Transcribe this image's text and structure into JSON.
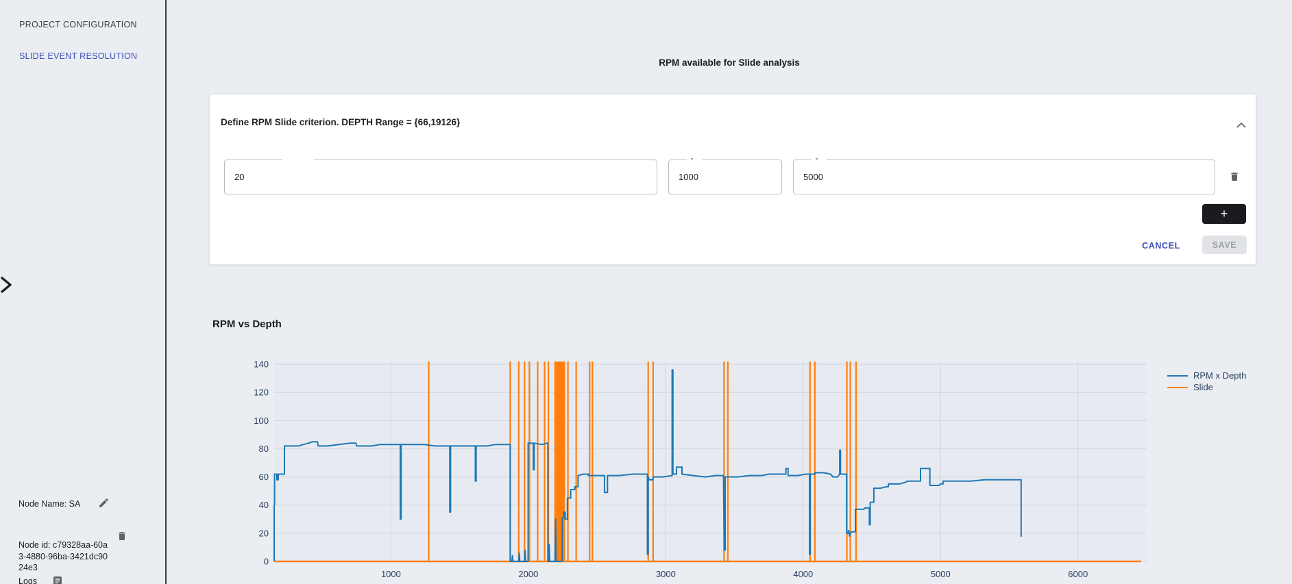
{
  "sidebar": {
    "items": [
      {
        "label": "PROJECT CONFIGURATION",
        "active": false
      },
      {
        "label": "SLIDE EVENT RESOLUTION",
        "active": true
      }
    ],
    "node_name_label": "Node Name: SA",
    "node_id_line": "Node id: c79328aa-60a3-4880-96ba-3421dc9024e3",
    "logs_label": "Logs"
  },
  "header": {
    "title": "RPM available for Slide analysis"
  },
  "criterion_card": {
    "title": "Define RPM Slide criterion. DEPTH Range = {66,19126}",
    "inputs": [
      {
        "value": "20"
      },
      {
        "value": "1000"
      },
      {
        "value": "5000"
      }
    ],
    "add_button_label": "+",
    "cancel_label": "CANCEL",
    "save_label": "SAVE"
  },
  "chart": {
    "title": "RPM vs Depth"
  },
  "chart_data": {
    "type": "line",
    "title": "RPM vs Depth",
    "xlabel": "",
    "ylabel": "",
    "x_range": [
      150,
      6500
    ],
    "y_range": [
      0,
      142
    ],
    "x_ticks": [
      1000,
      2000,
      3000,
      4000,
      5000,
      6000
    ],
    "y_ticks": [
      0,
      20,
      40,
      60,
      80,
      100,
      120,
      140
    ],
    "grid": true,
    "legend_position": "right",
    "colors": {
      "rpm": "#1f77b4",
      "slide": "#ff7f0e",
      "plot_bg": "#e7ebf1",
      "grid": "#d4d9df",
      "tick_text": "#2a3f5f"
    },
    "series": [
      {
        "name": "RPM x Depth",
        "color": "#1f77b4",
        "points": [
          [
            150,
            0
          ],
          [
            150,
            40
          ],
          [
            153,
            40
          ],
          [
            153,
            62
          ],
          [
            170,
            62
          ],
          [
            170,
            58
          ],
          [
            180,
            58
          ],
          [
            180,
            62
          ],
          [
            225,
            62
          ],
          [
            225,
            82
          ],
          [
            280,
            82
          ],
          [
            330,
            82
          ],
          [
            360,
            83
          ],
          [
            400,
            84
          ],
          [
            430,
            85
          ],
          [
            465,
            85
          ],
          [
            470,
            82
          ],
          [
            540,
            82
          ],
          [
            620,
            83
          ],
          [
            700,
            84
          ],
          [
            745,
            84
          ],
          [
            750,
            82
          ],
          [
            860,
            82
          ],
          [
            920,
            83
          ],
          [
            1000,
            83
          ],
          [
            1068,
            83
          ],
          [
            1068,
            30
          ],
          [
            1074,
            30
          ],
          [
            1074,
            83
          ],
          [
            1150,
            83
          ],
          [
            1240,
            83
          ],
          [
            1320,
            82
          ],
          [
            1428,
            82
          ],
          [
            1428,
            35
          ],
          [
            1434,
            35
          ],
          [
            1434,
            82
          ],
          [
            1560,
            82
          ],
          [
            1614,
            82
          ],
          [
            1614,
            57
          ],
          [
            1620,
            57
          ],
          [
            1620,
            82
          ],
          [
            1700,
            82
          ],
          [
            1760,
            83
          ],
          [
            1868,
            83
          ],
          [
            1868,
            0
          ],
          [
            1880,
            0
          ],
          [
            1884,
            4
          ],
          [
            1888,
            0
          ],
          [
            1930,
            0
          ],
          [
            1934,
            6
          ],
          [
            1938,
            0
          ],
          [
            1972,
            0
          ],
          [
            1976,
            8
          ],
          [
            1980,
            0
          ],
          [
            1998,
            0
          ],
          [
            1998,
            84
          ],
          [
            2032,
            84
          ],
          [
            2036,
            84
          ],
          [
            2036,
            65
          ],
          [
            2042,
            65
          ],
          [
            2042,
            84
          ],
          [
            2100,
            83
          ],
          [
            2134,
            84
          ],
          [
            2142,
            84
          ],
          [
            2142,
            0
          ],
          [
            2148,
            0
          ],
          [
            2152,
            12
          ],
          [
            2156,
            0
          ],
          [
            2194,
            0
          ],
          [
            2198,
            30
          ],
          [
            2202,
            0
          ],
          [
            2246,
            0
          ],
          [
            2246,
            31
          ],
          [
            2258,
            31
          ],
          [
            2258,
            35
          ],
          [
            2268,
            35
          ],
          [
            2268,
            30
          ],
          [
            2284,
            30
          ],
          [
            2284,
            45
          ],
          [
            2308,
            45
          ],
          [
            2308,
            51
          ],
          [
            2338,
            51
          ],
          [
            2338,
            53
          ],
          [
            2362,
            53
          ],
          [
            2362,
            61
          ],
          [
            2400,
            62
          ],
          [
            2436,
            62
          ],
          [
            2436,
            61
          ],
          [
            2554,
            61
          ],
          [
            2554,
            49
          ],
          [
            2576,
            49
          ],
          [
            2576,
            61
          ],
          [
            2660,
            61
          ],
          [
            2760,
            62
          ],
          [
            2866,
            62
          ],
          [
            2866,
            5
          ],
          [
            2872,
            5
          ],
          [
            2872,
            60
          ],
          [
            2880,
            58
          ],
          [
            2904,
            58
          ],
          [
            2912,
            60
          ],
          [
            2980,
            60
          ],
          [
            3046,
            61
          ],
          [
            3046,
            136
          ],
          [
            3052,
            136
          ],
          [
            3052,
            62
          ],
          [
            3078,
            62
          ],
          [
            3078,
            67
          ],
          [
            3118,
            67
          ],
          [
            3118,
            62
          ],
          [
            3200,
            61
          ],
          [
            3290,
            60
          ],
          [
            3360,
            61
          ],
          [
            3420,
            61
          ],
          [
            3426,
            8
          ],
          [
            3432,
            8
          ],
          [
            3432,
            60
          ],
          [
            3520,
            60
          ],
          [
            3610,
            61
          ],
          [
            3700,
            61
          ],
          [
            3750,
            62
          ],
          [
            3820,
            62
          ],
          [
            3874,
            62
          ],
          [
            3874,
            66
          ],
          [
            3890,
            66
          ],
          [
            3890,
            61
          ],
          [
            3960,
            61
          ],
          [
            4020,
            62
          ],
          [
            4046,
            62
          ],
          [
            4046,
            5
          ],
          [
            4052,
            5
          ],
          [
            4052,
            62
          ],
          [
            4085,
            62
          ],
          [
            4085,
            63
          ],
          [
            4150,
            63
          ],
          [
            4200,
            62
          ],
          [
            4216,
            60
          ],
          [
            4250,
            60
          ],
          [
            4266,
            62
          ],
          [
            4266,
            79
          ],
          [
            4272,
            79
          ],
          [
            4272,
            62
          ],
          [
            4316,
            62
          ],
          [
            4316,
            20
          ],
          [
            4326,
            20
          ],
          [
            4330,
            22
          ],
          [
            4338,
            18
          ],
          [
            4348,
            21
          ],
          [
            4380,
            21
          ],
          [
            4380,
            37
          ],
          [
            4440,
            37
          ],
          [
            4452,
            38
          ],
          [
            4482,
            38
          ],
          [
            4482,
            26
          ],
          [
            4488,
            26
          ],
          [
            4488,
            42
          ],
          [
            4514,
            42
          ],
          [
            4514,
            52
          ],
          [
            4560,
            52
          ],
          [
            4604,
            53
          ],
          [
            4620,
            53
          ],
          [
            4620,
            55
          ],
          [
            4700,
            55
          ],
          [
            4738,
            56
          ],
          [
            4760,
            57
          ],
          [
            4800,
            57
          ],
          [
            4854,
            57
          ],
          [
            4854,
            66
          ],
          [
            4922,
            66
          ],
          [
            4922,
            54
          ],
          [
            4988,
            54
          ],
          [
            5000,
            55
          ],
          [
            5018,
            55
          ],
          [
            5018,
            57
          ],
          [
            5120,
            57
          ],
          [
            5220,
            57
          ],
          [
            5320,
            58
          ],
          [
            5420,
            58
          ],
          [
            5520,
            58
          ],
          [
            5586,
            58
          ],
          [
            5586,
            18
          ],
          [
            5592,
            18
          ]
        ]
      },
      {
        "name": "Slide",
        "color": "#ff7f0e",
        "baseline_y": 0,
        "baseline_x": [
          150,
          6460
        ],
        "event_x": [
          1275,
          1868,
          1930,
          1972,
          2008,
          2068,
          2118,
          2146,
          2194,
          2204,
          2212,
          2220,
          2228,
          2236,
          2244,
          2252,
          2262,
          2288,
          2348,
          2446,
          2466,
          2872,
          2908,
          3424,
          3452,
          4050,
          4085,
          4318,
          4343,
          4385
        ]
      }
    ]
  }
}
